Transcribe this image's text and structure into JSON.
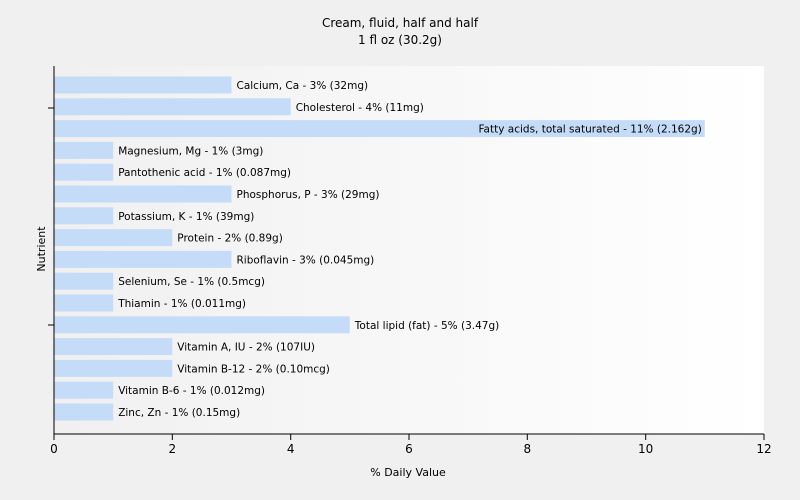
{
  "chart_data": {
    "type": "bar",
    "orientation": "horizontal",
    "title": "Cream, fluid, half and half",
    "subtitle": "1 fl oz (30.2g)",
    "xlabel": "% Daily Value",
    "ylabel": "Nutrient",
    "xlim": [
      0,
      12
    ],
    "xticks": [
      "0",
      "2",
      "4",
      "6",
      "8",
      "10",
      "12"
    ],
    "grid": false,
    "bar_color": "#c5dcf9",
    "categories": [
      "Calcium, Ca",
      "Cholesterol",
      "Fatty acids, total saturated",
      "Magnesium, Mg",
      "Pantothenic acid",
      "Phosphorus, P",
      "Potassium, K",
      "Protein",
      "Riboflavin",
      "Selenium, Se",
      "Thiamin",
      "Total lipid (fat)",
      "Vitamin A, IU",
      "Vitamin B-12",
      "Vitamin B-6",
      "Zinc, Zn"
    ],
    "values": [
      3,
      4,
      11,
      1,
      1,
      3,
      1,
      2,
      3,
      1,
      1,
      5,
      2,
      2,
      1,
      1
    ],
    "bar_labels": [
      "Calcium, Ca - 3% (32mg)",
      "Cholesterol - 4% (11mg)",
      "Fatty acids, total saturated - 11% (2.162g)",
      "Magnesium, Mg - 1% (3mg)",
      "Pantothenic acid - 1% (0.087mg)",
      "Phosphorus, P - 3% (29mg)",
      "Potassium, K - 1% (39mg)",
      "Protein - 2% (0.89g)",
      "Riboflavin - 3% (0.045mg)",
      "Selenium, Se - 1% (0.5mcg)",
      "Thiamin - 1% (0.011mg)",
      "Total lipid (fat) - 5% (3.47g)",
      "Vitamin A, IU - 2% (107IU)",
      "Vitamin B-12 - 2% (0.10mcg)",
      "Vitamin B-6 - 1% (0.012mg)",
      "Zinc, Zn - 1% (0.15mg)"
    ]
  }
}
